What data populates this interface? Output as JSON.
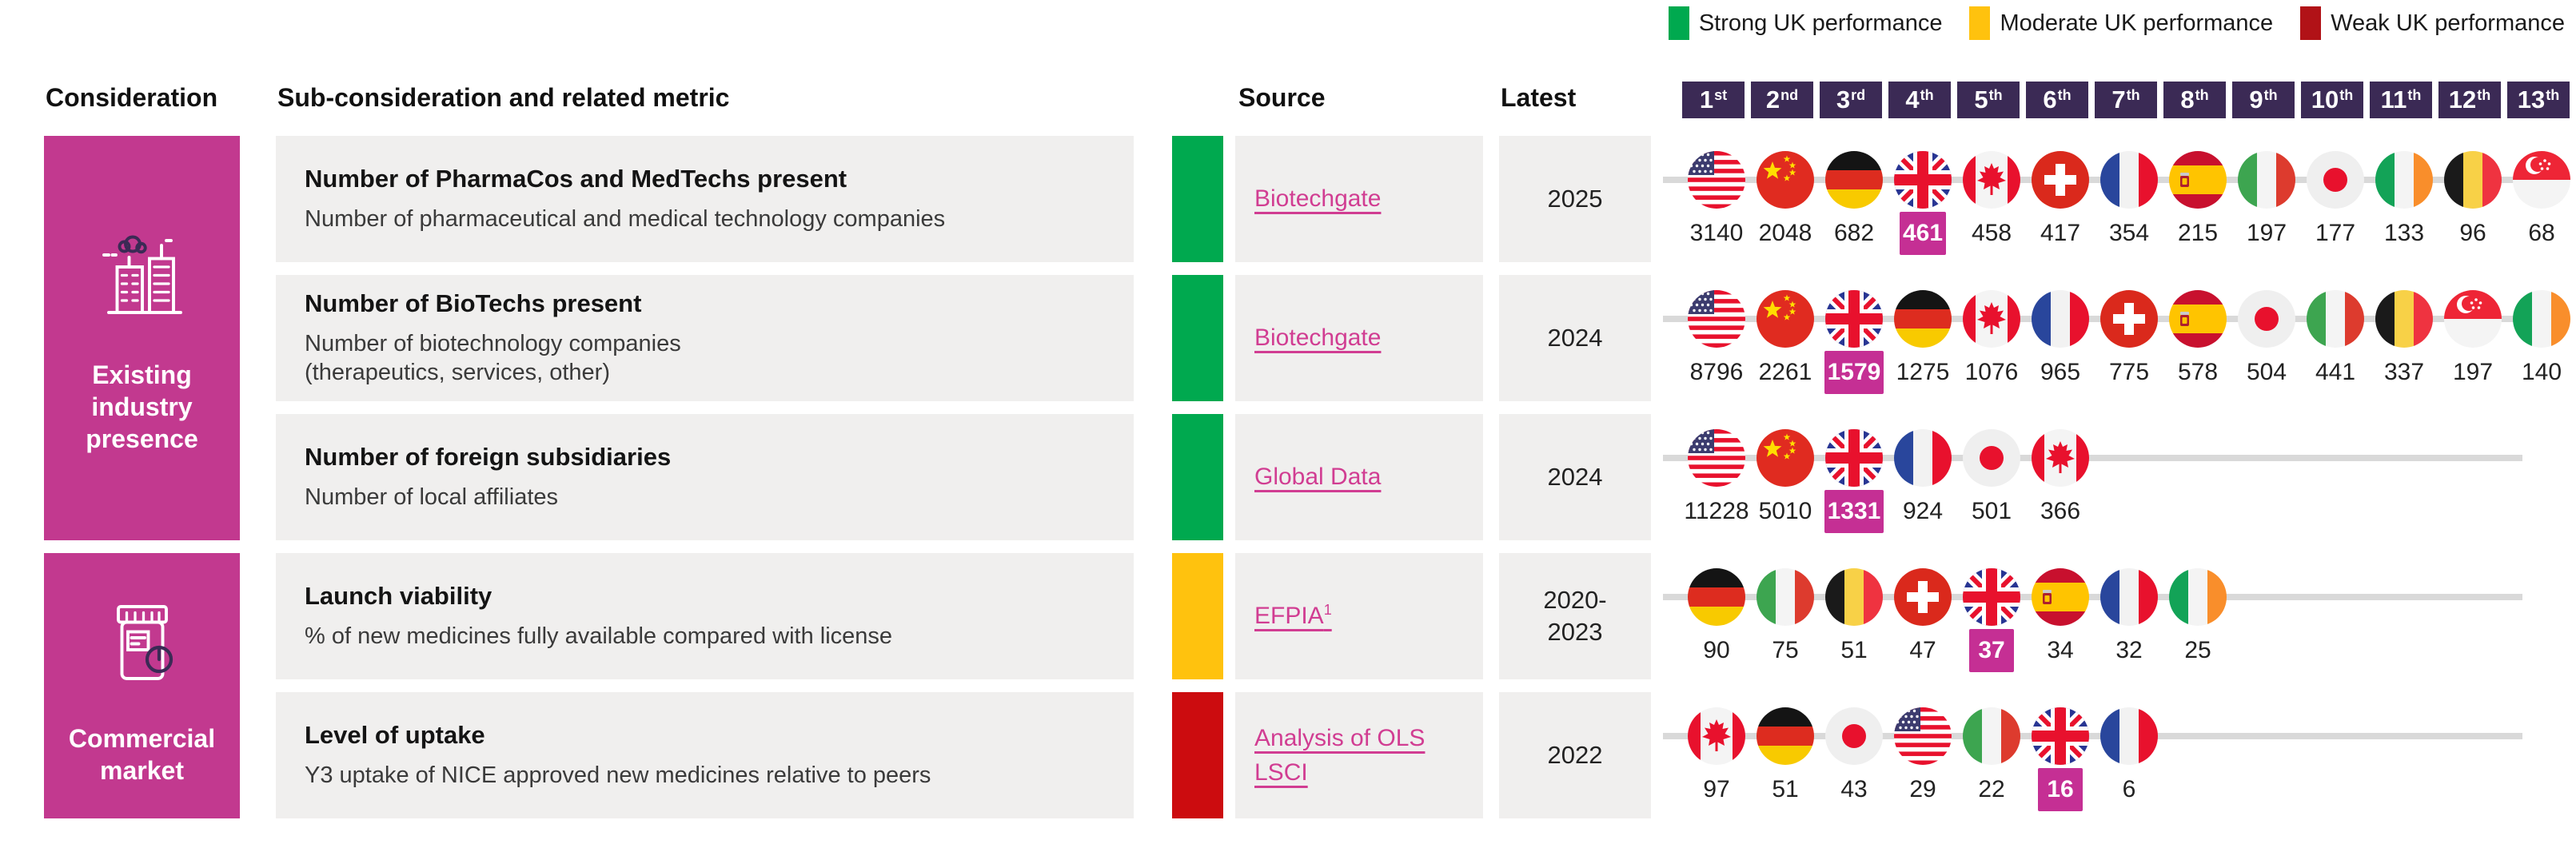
{
  "colors": {
    "brand_pink": "#c2398f",
    "highlight_pink": "#c52f94",
    "strong_green": "#00a94f",
    "moderate_yellow": "#ffc20e",
    "weak_red_legend": "#b11217",
    "weak_red_bar": "#cc0c0f",
    "rank_badge_purple": "#3b2a55",
    "row_bg": "#f0efee",
    "timeline_gray": "#d9d9d9",
    "link_pink": "#d13d92"
  },
  "legend": {
    "items": [
      {
        "label": "Strong UK performance",
        "color": "#00a94f"
      },
      {
        "label": "Moderate UK performance",
        "color": "#ffc20e"
      },
      {
        "label": "Weak UK performance",
        "color": "#b11217"
      }
    ]
  },
  "header": {
    "consideration": "Consideration",
    "sub_consideration": "Sub-consideration and related metric",
    "source": "Source",
    "latest": "Latest",
    "ranks": [
      {
        "num": "1",
        "suffix": "st"
      },
      {
        "num": "2",
        "suffix": "nd"
      },
      {
        "num": "3",
        "suffix": "rd"
      },
      {
        "num": "4",
        "suffix": "th"
      },
      {
        "num": "5",
        "suffix": "th"
      },
      {
        "num": "6",
        "suffix": "th"
      },
      {
        "num": "7",
        "suffix": "th"
      },
      {
        "num": "8",
        "suffix": "th"
      },
      {
        "num": "9",
        "suffix": "th"
      },
      {
        "num": "10",
        "suffix": "th"
      },
      {
        "num": "11",
        "suffix": "th"
      },
      {
        "num": "12",
        "suffix": "th"
      },
      {
        "num": "13",
        "suffix": "th"
      }
    ]
  },
  "groups": [
    {
      "label": "Existing industry presence",
      "icon": "buildings-icon",
      "rows": [
        {
          "title": "Number of PharmaCos and MedTechs present",
          "subtitle": "Number of pharmaceutical and medical technology companies",
          "performance": "strong",
          "source": {
            "label": "Biotechgate",
            "sup": ""
          },
          "latest": "2025",
          "entries": [
            {
              "country": "United States",
              "code": "us",
              "value": "3140",
              "highlight": false
            },
            {
              "country": "China",
              "code": "cn",
              "value": "2048",
              "highlight": false
            },
            {
              "country": "Germany",
              "code": "de",
              "value": "682",
              "highlight": false
            },
            {
              "country": "United Kingdom",
              "code": "gb",
              "value": "461",
              "highlight": true
            },
            {
              "country": "Canada",
              "code": "ca",
              "value": "458",
              "highlight": false
            },
            {
              "country": "Switzerland",
              "code": "ch",
              "value": "417",
              "highlight": false
            },
            {
              "country": "France",
              "code": "fr",
              "value": "354",
              "highlight": false
            },
            {
              "country": "Spain",
              "code": "es",
              "value": "215",
              "highlight": false
            },
            {
              "country": "Italy",
              "code": "it",
              "value": "197",
              "highlight": false
            },
            {
              "country": "Japan",
              "code": "jp",
              "value": "177",
              "highlight": false
            },
            {
              "country": "Ireland",
              "code": "ie",
              "value": "133",
              "highlight": false
            },
            {
              "country": "Belgium",
              "code": "be",
              "value": "96",
              "highlight": false
            },
            {
              "country": "Singapore",
              "code": "sg",
              "value": "68",
              "highlight": false
            }
          ]
        },
        {
          "title": "Number of BioTechs present",
          "subtitle": "Number of biotechnology companies\n(therapeutics, services, other)",
          "performance": "strong",
          "source": {
            "label": "Biotechgate",
            "sup": ""
          },
          "latest": "2024",
          "entries": [
            {
              "country": "United States",
              "code": "us",
              "value": "8796",
              "highlight": false
            },
            {
              "country": "China",
              "code": "cn",
              "value": "2261",
              "highlight": false
            },
            {
              "country": "United Kingdom",
              "code": "gb",
              "value": "1579",
              "highlight": true
            },
            {
              "country": "Germany",
              "code": "de",
              "value": "1275",
              "highlight": false
            },
            {
              "country": "Canada",
              "code": "ca",
              "value": "1076",
              "highlight": false
            },
            {
              "country": "France",
              "code": "fr",
              "value": "965",
              "highlight": false
            },
            {
              "country": "Switzerland",
              "code": "ch",
              "value": "775",
              "highlight": false
            },
            {
              "country": "Spain",
              "code": "es",
              "value": "578",
              "highlight": false
            },
            {
              "country": "Japan",
              "code": "jp",
              "value": "504",
              "highlight": false
            },
            {
              "country": "Italy",
              "code": "it",
              "value": "441",
              "highlight": false
            },
            {
              "country": "Belgium",
              "code": "be",
              "value": "337",
              "highlight": false
            },
            {
              "country": "Singapore",
              "code": "sg",
              "value": "197",
              "highlight": false
            },
            {
              "country": "Ireland",
              "code": "ie",
              "value": "140",
              "highlight": false
            }
          ]
        },
        {
          "title": "Number of foreign subsidiaries",
          "subtitle": "Number of local affiliates",
          "performance": "strong",
          "source": {
            "label": "Global Data",
            "sup": ""
          },
          "latest": "2024",
          "entries": [
            {
              "country": "United States",
              "code": "us",
              "value": "11228",
              "highlight": false
            },
            {
              "country": "China",
              "code": "cn",
              "value": "5010",
              "highlight": false
            },
            {
              "country": "United Kingdom",
              "code": "gb",
              "value": "1331",
              "highlight": true
            },
            {
              "country": "France",
              "code": "fr",
              "value": "924",
              "highlight": false
            },
            {
              "country": "Japan",
              "code": "jp",
              "value": "501",
              "highlight": false
            },
            {
              "country": "Canada",
              "code": "ca",
              "value": "366",
              "highlight": false
            }
          ]
        }
      ]
    },
    {
      "label": "Commercial market",
      "icon": "pill-bottle-icon",
      "rows": [
        {
          "title": "Launch viability",
          "subtitle": "% of new medicines fully available compared with license",
          "performance": "moderate",
          "source": {
            "label": "EFPIA",
            "sup": "1"
          },
          "latest": "2020-2023",
          "entries": [
            {
              "country": "Germany",
              "code": "de",
              "value": "90",
              "highlight": false
            },
            {
              "country": "Italy",
              "code": "it",
              "value": "75",
              "highlight": false
            },
            {
              "country": "Belgium",
              "code": "be",
              "value": "51",
              "highlight": false
            },
            {
              "country": "Switzerland",
              "code": "ch",
              "value": "47",
              "highlight": false
            },
            {
              "country": "United Kingdom",
              "code": "gb",
              "value": "37",
              "highlight": true
            },
            {
              "country": "Spain",
              "code": "es",
              "value": "34",
              "highlight": false
            },
            {
              "country": "France",
              "code": "fr",
              "value": "32",
              "highlight": false
            },
            {
              "country": "Ireland",
              "code": "ie",
              "value": "25",
              "highlight": false
            }
          ]
        },
        {
          "title": "Level of uptake",
          "subtitle": "Y3 uptake of NICE approved new medicines relative to peers",
          "performance": "weak",
          "source": {
            "label": "Analysis of OLS LSCI",
            "sup": ""
          },
          "latest": "2022",
          "entries": [
            {
              "country": "Canada",
              "code": "ca",
              "value": "97",
              "highlight": false
            },
            {
              "country": "Germany",
              "code": "de",
              "value": "51",
              "highlight": false
            },
            {
              "country": "Japan",
              "code": "jp",
              "value": "43",
              "highlight": false
            },
            {
              "country": "United States",
              "code": "us",
              "value": "29",
              "highlight": false
            },
            {
              "country": "Italy",
              "code": "it",
              "value": "22",
              "highlight": false
            },
            {
              "country": "United Kingdom",
              "code": "gb",
              "value": "16",
              "highlight": true
            },
            {
              "country": "France",
              "code": "fr",
              "value": "6",
              "highlight": false
            }
          ]
        }
      ]
    }
  ],
  "chart_data": [
    {
      "type": "table",
      "title": "Number of PharmaCos and MedTechs present",
      "consideration": "Existing industry presence",
      "performance": "Strong UK performance",
      "source": "Biotechgate",
      "latest": "2025",
      "categories": [
        "United States",
        "China",
        "Germany",
        "United Kingdom",
        "Canada",
        "Switzerland",
        "France",
        "Spain",
        "Italy",
        "Japan",
        "Ireland",
        "Belgium",
        "Singapore"
      ],
      "values": [
        3140,
        2048,
        682,
        461,
        458,
        417,
        354,
        215,
        197,
        177,
        133,
        96,
        68
      ],
      "uk_rank": 4
    },
    {
      "type": "table",
      "title": "Number of BioTechs present",
      "consideration": "Existing industry presence",
      "performance": "Strong UK performance",
      "source": "Biotechgate",
      "latest": "2024",
      "categories": [
        "United States",
        "China",
        "United Kingdom",
        "Germany",
        "Canada",
        "France",
        "Switzerland",
        "Spain",
        "Japan",
        "Italy",
        "Belgium",
        "Singapore",
        "Ireland"
      ],
      "values": [
        8796,
        2261,
        1579,
        1275,
        1076,
        965,
        775,
        578,
        504,
        441,
        337,
        197,
        140
      ],
      "uk_rank": 3
    },
    {
      "type": "table",
      "title": "Number of foreign subsidiaries",
      "consideration": "Existing industry presence",
      "performance": "Strong UK performance",
      "source": "Global Data",
      "latest": "2024",
      "categories": [
        "United States",
        "China",
        "United Kingdom",
        "France",
        "Japan",
        "Canada"
      ],
      "values": [
        11228,
        5010,
        1331,
        924,
        501,
        366
      ],
      "uk_rank": 3
    },
    {
      "type": "table",
      "title": "Launch viability",
      "consideration": "Commercial market",
      "performance": "Moderate UK performance",
      "source": "EFPIA",
      "latest": "2020-2023",
      "categories": [
        "Germany",
        "Italy",
        "Belgium",
        "Switzerland",
        "United Kingdom",
        "Spain",
        "France",
        "Ireland"
      ],
      "values": [
        90,
        75,
        51,
        47,
        37,
        34,
        32,
        25
      ],
      "uk_rank": 5
    },
    {
      "type": "table",
      "title": "Level of uptake",
      "consideration": "Commercial market",
      "performance": "Weak UK performance",
      "source": "Analysis of OLS LSCI",
      "latest": "2022",
      "categories": [
        "Canada",
        "Germany",
        "Japan",
        "United States",
        "Italy",
        "United Kingdom",
        "France"
      ],
      "values": [
        97,
        51,
        43,
        29,
        22,
        16,
        6
      ],
      "uk_rank": 6
    }
  ]
}
